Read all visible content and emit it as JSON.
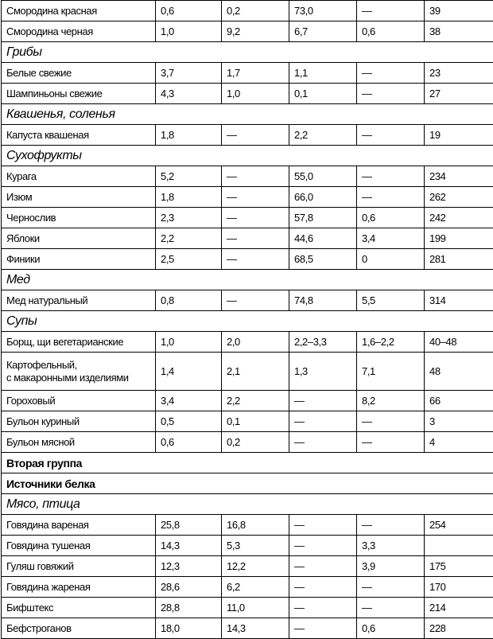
{
  "table": {
    "rows": [
      {
        "cells": [
          "Смородина красная",
          "0,6",
          "0,2",
          "73,0",
          "—",
          "39"
        ]
      },
      {
        "cells": [
          "Смородина черная",
          "1,0",
          "9,2",
          "6,7",
          "0,6",
          "38"
        ]
      },
      {
        "section": "Грибы",
        "style": "italic"
      },
      {
        "cells": [
          "Белые свежие",
          "3,7",
          "1,7",
          "1,1",
          "—",
          "23"
        ]
      },
      {
        "cells": [
          "Шампиньоны свежие",
          "4,3",
          "1,0",
          "0,1",
          "—",
          "27"
        ]
      },
      {
        "section": "Квашенья, соленья",
        "style": "italic"
      },
      {
        "cells": [
          "Капуста квашеная",
          "1,8",
          "—",
          "2,2",
          "—",
          "19"
        ]
      },
      {
        "section": "Сухофрукты",
        "style": "italic"
      },
      {
        "cells": [
          "Курага",
          "5,2",
          "—",
          "55,0",
          "—",
          "234"
        ]
      },
      {
        "cells": [
          "Изюм",
          "1,8",
          "—",
          "66,0",
          "—",
          "262"
        ]
      },
      {
        "cells": [
          "Чернослив",
          "2,3",
          "—",
          "57,8",
          "0,6",
          "242"
        ]
      },
      {
        "cells": [
          "Яблоки",
          "2,2",
          "—",
          "44,6",
          "3,4",
          "199"
        ]
      },
      {
        "cells": [
          "Финики",
          "2,5",
          "—",
          "68,5",
          "0",
          "281"
        ]
      },
      {
        "section": "Мед",
        "style": "italic"
      },
      {
        "cells": [
          "Мед натуральный",
          "0,8",
          "—",
          "74,8",
          "5,5",
          "314"
        ]
      },
      {
        "section": "Супы",
        "style": "italic"
      },
      {
        "cells": [
          "Борщ, щи вегетарианские",
          "1,0",
          "2,0",
          "2,2–3,3",
          "1,6–2,2",
          "40–48"
        ]
      },
      {
        "cells": [
          "Картофельный,\nс макаронными изделиями",
          "1,4",
          "2,1",
          "1,3",
          "7,1",
          "48"
        ]
      },
      {
        "cells": [
          "Гороховый",
          "3,4",
          "2,2",
          "—",
          "8,2",
          "66"
        ]
      },
      {
        "cells": [
          "Бульон куриный",
          "0,5",
          "0,1",
          "—",
          "—",
          "3"
        ]
      },
      {
        "cells": [
          "Бульон мясной",
          "0,6",
          "0,2",
          "—",
          "—",
          "4"
        ]
      },
      {
        "section": "Вторая группа",
        "style": "bold"
      },
      {
        "section": "Источники белка",
        "style": "bold"
      },
      {
        "section": "Мясо, птица",
        "style": "italic"
      },
      {
        "cells": [
          "Говядина вареная",
          "25,8",
          "16,8",
          "—",
          "—",
          "254"
        ]
      },
      {
        "cells": [
          "Говядина тушеная",
          "14,3",
          "5,3",
          "—",
          "3,3",
          null
        ]
      },
      {
        "cells": [
          "Гуляш говяжий",
          "12,3",
          "12,2",
          "—",
          "3,9",
          "175"
        ]
      },
      {
        "cells": [
          "Говядина жареная",
          "28,6",
          "6,2",
          "—",
          "—",
          "170"
        ]
      },
      {
        "cells": [
          "Бифштекс",
          "28,8",
          "11,0",
          "—",
          "—",
          "214"
        ]
      },
      {
        "cells": [
          "Бефстроганов",
          "18,0",
          "14,3",
          "—",
          "0,6",
          "228"
        ]
      }
    ]
  }
}
